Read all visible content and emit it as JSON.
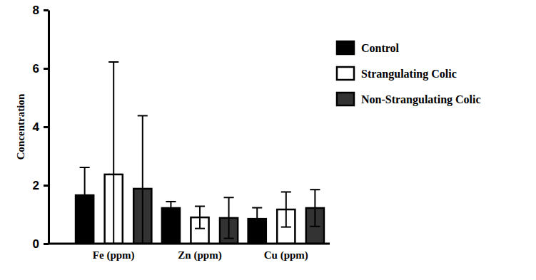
{
  "chart_data": {
    "type": "bar",
    "y_label": "Concentration",
    "categories": [
      "Fe (ppm)",
      "Zn (ppm)",
      "Cu (ppm)"
    ],
    "series": [
      {
        "name": "Control",
        "color": "#000000",
        "values": [
          1.66,
          1.22,
          0.85
        ],
        "errors": [
          0.95,
          0.22,
          0.38
        ]
      },
      {
        "name": "Strangulating Colic",
        "color": "#ffffff",
        "values": [
          2.37,
          0.9,
          1.17
        ],
        "errors": [
          3.85,
          0.38,
          0.6
        ]
      },
      {
        "name": "Non-Strangulating Colic",
        "color": "#333333",
        "values": [
          1.88,
          0.88,
          1.22
        ],
        "errors": [
          2.5,
          0.7,
          0.63
        ]
      }
    ],
    "ylim": [
      0,
      8
    ],
    "yticks": [
      0,
      2,
      4,
      6,
      8
    ],
    "legend": "upper right"
  }
}
